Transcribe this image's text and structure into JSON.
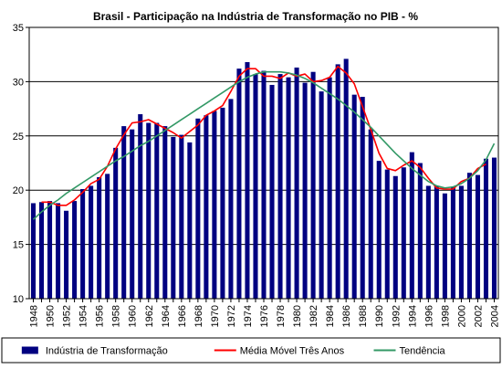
{
  "chart_data": {
    "type": "bar",
    "title": "Brasil - Participação na Indústria de Transformação no PIB - %",
    "xlabel": "",
    "ylabel": "",
    "ylim": [
      10,
      35
    ],
    "y_ticks": [
      "10",
      "15",
      "20",
      "25",
      "30",
      "35"
    ],
    "x_tick_labels": [
      "1948",
      "1950",
      "1952",
      "1954",
      "1956",
      "1958",
      "1960",
      "1962",
      "1964",
      "1966",
      "1968",
      "1970",
      "1972",
      "1974",
      "1976",
      "1978",
      "1980",
      "1982",
      "1984",
      "1986",
      "1988",
      "1990",
      "1992",
      "1994",
      "1996",
      "1998",
      "2000",
      "2002",
      "2004"
    ],
    "grid": "horizontal",
    "legend_position": "bottom",
    "categories": [
      1948,
      1949,
      1950,
      1951,
      1952,
      1953,
      1954,
      1955,
      1956,
      1957,
      1958,
      1959,
      1960,
      1961,
      1962,
      1963,
      1964,
      1965,
      1966,
      1967,
      1968,
      1969,
      1970,
      1971,
      1972,
      1973,
      1974,
      1975,
      1976,
      1977,
      1978,
      1979,
      1980,
      1981,
      1982,
      1983,
      1984,
      1985,
      1986,
      1987,
      1988,
      1989,
      1990,
      1991,
      1992,
      1993,
      1994,
      1995,
      1996,
      1997,
      1998,
      1999,
      2000,
      2001,
      2002,
      2003,
      2004
    ],
    "series": [
      {
        "name": "Indústria de Transformação",
        "kind": "bar",
        "color": "#000080",
        "values": [
          18.8,
          18.9,
          19.0,
          18.8,
          18.1,
          19.0,
          20.1,
          20.4,
          21.2,
          21.5,
          23.9,
          25.9,
          25.6,
          27.0,
          26.2,
          26.2,
          25.9,
          24.9,
          25.1,
          24.4,
          26.6,
          26.9,
          27.3,
          27.6,
          28.4,
          31.2,
          31.8,
          30.7,
          31.0,
          29.7,
          30.7,
          30.4,
          31.3,
          29.9,
          30.9,
          29.1,
          30.4,
          31.6,
          32.1,
          28.8,
          28.6,
          25.6,
          22.7,
          21.9,
          21.3,
          22.1,
          23.5,
          22.5,
          20.4,
          20.4,
          19.7,
          20.3,
          20.4,
          21.6,
          21.4,
          22.9,
          23.0
        ]
      },
      {
        "name": "Média Móvel Três Anos",
        "kind": "line",
        "color": "#ff0000",
        "values": [
          null,
          18.9,
          18.9,
          18.6,
          18.6,
          19.1,
          19.8,
          20.6,
          21.0,
          22.2,
          23.8,
          25.1,
          26.2,
          26.3,
          26.5,
          26.1,
          25.7,
          25.3,
          24.8,
          25.4,
          26.0,
          26.9,
          27.3,
          27.8,
          29.1,
          30.5,
          31.2,
          31.2,
          30.5,
          30.5,
          30.3,
          30.8,
          30.5,
          30.7,
          30.0,
          30.1,
          30.4,
          31.4,
          30.8,
          29.8,
          27.7,
          25.6,
          23.4,
          22.0,
          21.8,
          22.3,
          22.7,
          22.1,
          21.1,
          20.2,
          20.1,
          20.1,
          20.8,
          21.1,
          22.0,
          22.4,
          null
        ]
      },
      {
        "name": "Tendência",
        "kind": "line",
        "color": "#339966",
        "values": [
          17.3,
          18.0,
          18.6,
          19.1,
          19.7,
          20.2,
          20.7,
          21.2,
          21.7,
          22.2,
          22.7,
          23.1,
          23.6,
          24.1,
          24.5,
          25.0,
          25.5,
          26.0,
          26.5,
          27.0,
          27.5,
          28.0,
          28.5,
          29.0,
          29.5,
          30.0,
          30.4,
          30.7,
          30.9,
          30.9,
          30.9,
          30.8,
          30.6,
          30.3,
          29.9,
          29.4,
          28.9,
          28.4,
          27.8,
          27.2,
          26.5,
          25.8,
          25.0,
          24.2,
          23.4,
          22.7,
          22.0,
          21.4,
          20.8,
          20.4,
          20.2,
          20.3,
          20.6,
          21.1,
          21.8,
          22.8,
          24.3
        ]
      }
    ]
  }
}
